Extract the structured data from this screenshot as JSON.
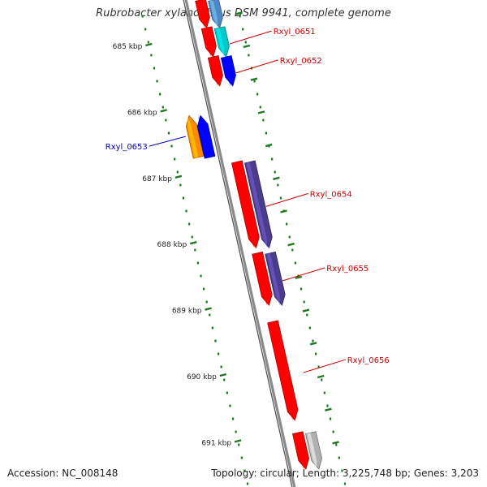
{
  "title": "Rubrobacter xylanophilus DSM 9941, complete genome",
  "accession": "Accession: NC_008148",
  "summary": "Topology: circular; Length: 3,225,748 bp; Genes: 3,203",
  "colors": {
    "backbone": "#8a8a8a",
    "tick": "#1f7a1f",
    "label_plus": "#cc0000",
    "label_minus": "#0000bb",
    "gene_red": "#ff0000",
    "gene_blue": "#0000ff",
    "gene_cyan": "#00c8c8",
    "gene_purple": "#4b3c8c",
    "gene_orange": "#ff8c00",
    "gene_gray": "#b0b0b0",
    "gene_steel": "#4f86c6"
  },
  "kbp_ticks": [
    {
      "kbp": 685,
      "label": "685 kbp"
    },
    {
      "kbp": 686,
      "label": "686 kbp"
    },
    {
      "kbp": 687,
      "label": "687 kbp"
    },
    {
      "kbp": 688,
      "label": "688 kbp"
    },
    {
      "kbp": 689,
      "label": "689 kbp"
    },
    {
      "kbp": 690,
      "label": "690 kbp"
    },
    {
      "kbp": 691,
      "label": "691 kbp"
    }
  ],
  "genes": [
    {
      "name": "Rxyl_0651",
      "strand": "+",
      "labelled": true,
      "start_kbp": 684.72,
      "end_kbp": 685.16,
      "feature_color": "gene_cyan",
      "cds_color": "gene_red"
    },
    {
      "name": "Rxyl_0652",
      "strand": "+",
      "labelled": true,
      "start_kbp": 685.16,
      "end_kbp": 685.6,
      "feature_color": "gene_blue",
      "cds_color": "gene_red"
    },
    {
      "name": "Rxyl_0653",
      "strand": "-",
      "labelled": true,
      "start_kbp": 686.05,
      "end_kbp": 686.68,
      "feature_color": "gene_blue",
      "cds_color": "gene_orange"
    },
    {
      "name": "Rxyl_0654",
      "strand": "+",
      "labelled": true,
      "start_kbp": 686.75,
      "end_kbp": 688.05,
      "feature_color": "gene_purple",
      "cds_color": "gene_red"
    },
    {
      "name": "Rxyl_0655",
      "strand": "+",
      "labelled": true,
      "start_kbp": 688.13,
      "end_kbp": 688.92,
      "feature_color": "gene_purple",
      "cds_color": "gene_red"
    },
    {
      "name": "Rxyl_0656",
      "strand": "+",
      "labelled": true,
      "start_kbp": 689.17,
      "end_kbp": 690.66,
      "feature_color": null,
      "cds_color": "gene_red"
    },
    {
      "name": "",
      "strand": "+",
      "labelled": false,
      "start_kbp": 684.3,
      "end_kbp": 684.72,
      "feature_color": "gene_steel",
      "cds_color": "gene_red"
    },
    {
      "name": "",
      "strand": "+",
      "labelled": false,
      "start_kbp": 690.85,
      "end_kbp": 691.4,
      "feature_color": "gene_gray",
      "cds_color": "gene_red"
    }
  ]
}
